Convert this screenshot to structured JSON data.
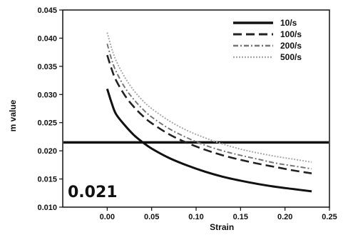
{
  "chart_data": {
    "type": "line",
    "title": "",
    "xlabel": "Strain",
    "ylabel": "m value",
    "xlim": [
      -0.05,
      0.25
    ],
    "ylim": [
      0.01,
      0.045
    ],
    "x_ticks": [
      "0.00",
      "0.05",
      "0.10",
      "0.15",
      "0.20",
      "0.25"
    ],
    "y_ticks": [
      "0.010",
      "0.015",
      "0.020",
      "0.025",
      "0.030",
      "0.035",
      "0.040",
      "0.045"
    ],
    "grid": false,
    "legend_position": "top-right",
    "annotation": "0.021",
    "reference_line": {
      "y": 0.0215,
      "x_range": [
        -0.05,
        0.25
      ]
    },
    "series": [
      {
        "name": "10/s",
        "color": "#111111",
        "dash": "solid",
        "x": [
          0.0,
          0.005,
          0.01,
          0.02,
          0.03,
          0.04,
          0.05,
          0.07,
          0.09,
          0.11,
          0.13,
          0.15,
          0.17,
          0.19,
          0.21,
          0.23
        ],
        "values": [
          0.031,
          0.0285,
          0.0265,
          0.0245,
          0.0228,
          0.0215,
          0.0204,
          0.0187,
          0.0174,
          0.0163,
          0.0154,
          0.0147,
          0.0141,
          0.0136,
          0.0132,
          0.0128
        ]
      },
      {
        "name": "100/s",
        "color": "#222222",
        "dash": "long-dash",
        "x": [
          0.0,
          0.005,
          0.01,
          0.02,
          0.03,
          0.04,
          0.05,
          0.07,
          0.09,
          0.11,
          0.13,
          0.15,
          0.17,
          0.19,
          0.21,
          0.23
        ],
        "values": [
          0.037,
          0.0345,
          0.0325,
          0.0298,
          0.0278,
          0.0262,
          0.0249,
          0.0229,
          0.0214,
          0.0202,
          0.0192,
          0.0184,
          0.0177,
          0.0171,
          0.0165,
          0.016
        ]
      },
      {
        "name": "200/s",
        "color": "#777777",
        "dash": "dash-dot",
        "x": [
          0.0,
          0.005,
          0.01,
          0.02,
          0.03,
          0.04,
          0.05,
          0.07,
          0.09,
          0.11,
          0.13,
          0.15,
          0.17,
          0.19,
          0.21,
          0.23
        ],
        "values": [
          0.039,
          0.0362,
          0.0341,
          0.0312,
          0.0291,
          0.0274,
          0.026,
          0.0239,
          0.0223,
          0.021,
          0.02,
          0.0192,
          0.0185,
          0.0178,
          0.0173,
          0.0168
        ]
      },
      {
        "name": "500/s",
        "color": "#aaaaaa",
        "dash": "dotted",
        "x": [
          0.0,
          0.005,
          0.01,
          0.02,
          0.03,
          0.04,
          0.05,
          0.07,
          0.09,
          0.11,
          0.13,
          0.15,
          0.17,
          0.19,
          0.21,
          0.23
        ],
        "values": [
          0.041,
          0.0382,
          0.036,
          0.033,
          0.0307,
          0.0289,
          0.0275,
          0.0253,
          0.0236,
          0.0223,
          0.0212,
          0.0203,
          0.0196,
          0.019,
          0.0185,
          0.018
        ]
      }
    ]
  }
}
